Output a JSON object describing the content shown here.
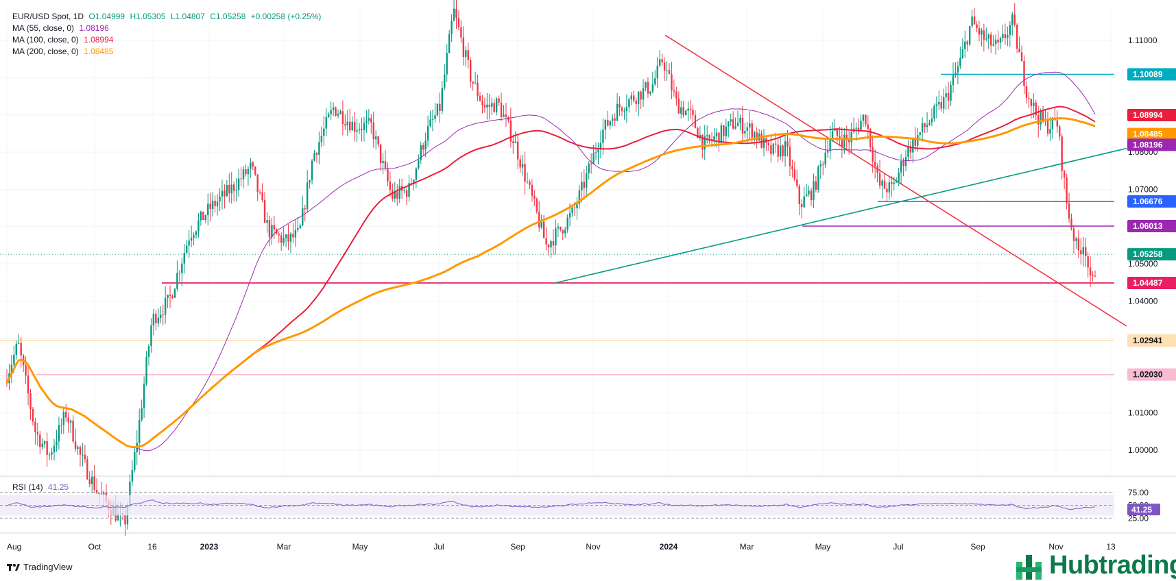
{
  "header": {
    "symbol": "EUR/USD Spot, 1D",
    "open": "O1.04999",
    "high": "H1.05305",
    "low": "L1.04807",
    "close": "C1.05258",
    "change": "+0.00258 (+0.25%)"
  },
  "indicators": [
    {
      "label": "MA (55, close, 0)",
      "value": "1.08196",
      "color": "#9c27b0"
    },
    {
      "label": "MA (100, close, 0)",
      "value": "1.08994",
      "color": "#e91e3c"
    },
    {
      "label": "MA (200, close, 0)",
      "value": "1.08485",
      "color": "#ff9800"
    }
  ],
  "chart_data": {
    "type": "candlestick",
    "y_ticks": [
      "1.11000",
      "1.10000",
      "1.09000",
      "1.08000",
      "1.07000",
      "1.06000",
      "1.05000",
      "1.04000",
      "1.03000",
      "1.02000",
      "1.01000",
      "1.00000"
    ],
    "y_tick_values": [
      1.11,
      1.1,
      1.09,
      1.08,
      1.07,
      1.06,
      1.05,
      1.04,
      1.03,
      1.02,
      1.01,
      1.0
    ],
    "ylim": [
      0.993,
      1.119
    ],
    "x_ticks": [
      "Aug",
      "Oct",
      "16",
      "2023",
      "Mar",
      "May",
      "Jul",
      "Sep",
      "Nov",
      "2024",
      "Mar",
      "May",
      "Jul",
      "Sep",
      "Nov",
      "13"
    ],
    "price_labels": [
      {
        "text": "1.10089",
        "value": 1.10089,
        "color": "#00acc1"
      },
      {
        "text": "1.08994",
        "value": 1.08994,
        "color": "#e91e3c"
      },
      {
        "text": "1.08485",
        "value": 1.08485,
        "color": "#ff9800"
      },
      {
        "text": "1.08196",
        "value": 1.08196,
        "color": "#9c27b0"
      },
      {
        "text": "1.06676",
        "value": 1.06676,
        "color": "#2962ff"
      },
      {
        "text": "1.06013",
        "value": 1.06013,
        "color": "#9c27b0"
      },
      {
        "text": "1.05258",
        "value": 1.05258,
        "color": "#089981"
      },
      {
        "text": "1.04487",
        "value": 1.04487,
        "color": "#e91e63"
      },
      {
        "text": "1.02941",
        "value": 1.02941,
        "color": "#ffe0b2"
      },
      {
        "text": "1.02030",
        "value": 1.0203,
        "color": "#f8bbd0"
      }
    ],
    "rsi": {
      "label": "RSI (14)",
      "value": "41.25",
      "ticks": [
        "75.00",
        "50.00",
        "25.00"
      ],
      "tick_values": [
        75,
        50,
        25
      ]
    }
  },
  "branding": {
    "tradingview": "TradingView",
    "hub": "Hubtrading"
  }
}
